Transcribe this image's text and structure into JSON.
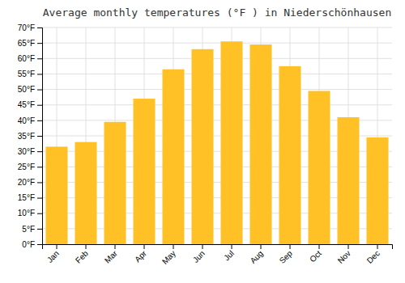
{
  "chart_data": {
    "type": "bar",
    "title": "Average monthly temperatures (°F ) in Niederschönhausen",
    "categories": [
      "Jan",
      "Feb",
      "Mar",
      "Apr",
      "May",
      "Jun",
      "Jul",
      "Aug",
      "Sep",
      "Oct",
      "Nov",
      "Dec"
    ],
    "values": [
      31.5,
      33.0,
      39.5,
      47.0,
      56.5,
      63.0,
      65.5,
      64.5,
      57.5,
      49.5,
      41.0,
      34.5
    ],
    "color": "#FFC125",
    "ylim": [
      0,
      70
    ],
    "yticks": [
      {
        "value": 0,
        "label": "0°F"
      },
      {
        "value": 5,
        "label": "5°F"
      },
      {
        "value": 10,
        "label": "10°F"
      },
      {
        "value": 15,
        "label": "15°F"
      },
      {
        "value": 20,
        "label": "20°F"
      },
      {
        "value": 25,
        "label": "25°F"
      },
      {
        "value": 30,
        "label": "30°F"
      },
      {
        "value": 35,
        "label": "35°F"
      },
      {
        "value": 40,
        "label": "40°F"
      },
      {
        "value": 45,
        "label": "45°F"
      },
      {
        "value": 50,
        "label": "50°F"
      },
      {
        "value": 55,
        "label": "55°F"
      },
      {
        "value": 60,
        "label": "60°F"
      },
      {
        "value": 65,
        "label": "65°F"
      },
      {
        "value": 70,
        "label": "70°F"
      }
    ],
    "grid": true
  }
}
